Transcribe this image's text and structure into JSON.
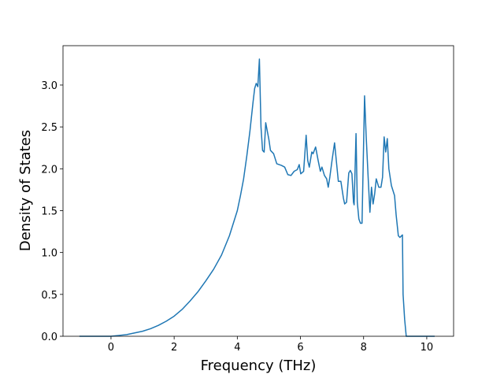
{
  "chart_data": {
    "type": "line",
    "xlabel": "Frequency (THz)",
    "ylabel": "Density of States",
    "xlim": [
      -1.52,
      10.85
    ],
    "ylim": [
      0,
      3.47
    ],
    "xticks": [
      0,
      2,
      4,
      6,
      8,
      10
    ],
    "yticks": [
      {
        "value": 0,
        "label": "0.0"
      },
      {
        "value": 0.5,
        "label": "0.5"
      },
      {
        "value": 1,
        "label": "1.0"
      },
      {
        "value": 1.5,
        "label": "1.5"
      },
      {
        "value": 2,
        "label": "2.0"
      },
      {
        "value": 2.5,
        "label": "2.5"
      },
      {
        "value": 3,
        "label": "3.0"
      }
    ],
    "series": [
      {
        "color": "#1f77b4",
        "x": [
          -1,
          -0.5,
          0,
          0.25,
          0.5,
          0.75,
          1,
          1.25,
          1.5,
          1.75,
          2,
          2.25,
          2.5,
          2.75,
          3,
          3.25,
          3.5,
          3.75,
          4,
          4.1,
          4.2,
          4.3,
          4.4,
          4.5,
          4.55,
          4.6,
          4.65,
          4.7,
          4.75,
          4.8,
          4.85,
          4.9,
          5.0,
          5.05,
          5.15,
          5.25,
          5.4,
          5.5,
          5.6,
          5.7,
          5.8,
          5.9,
          5.96,
          6.01,
          6.1,
          6.18,
          6.23,
          6.28,
          6.36,
          6.4,
          6.48,
          6.56,
          6.63,
          6.68,
          6.76,
          6.83,
          6.88,
          6.93,
          7.0,
          7.08,
          7.2,
          7.28,
          7.36,
          7.4,
          7.46,
          7.53,
          7.58,
          7.63,
          7.68,
          7.7,
          7.76,
          7.8,
          7.85,
          7.9,
          7.95,
          8.03,
          8.08,
          8.15,
          8.2,
          8.25,
          8.3,
          8.35,
          8.4,
          8.48,
          8.55,
          8.6,
          8.65,
          8.7,
          8.75,
          8.8,
          8.88,
          8.98,
          9.03,
          9.1,
          9.15,
          9.23,
          9.25,
          9.3,
          9.35,
          9.5,
          10.25
        ],
        "values": [
          0,
          0,
          0,
          0.01,
          0.02,
          0.04,
          0.06,
          0.09,
          0.13,
          0.18,
          0.24,
          0.32,
          0.42,
          0.53,
          0.66,
          0.8,
          0.97,
          1.2,
          1.5,
          1.68,
          1.88,
          2.15,
          2.45,
          2.8,
          2.96,
          3.02,
          2.98,
          3.31,
          2.5,
          2.22,
          2.2,
          2.55,
          2.35,
          2.22,
          2.18,
          2.06,
          2.04,
          2.02,
          1.93,
          1.92,
          1.97,
          1.99,
          2.05,
          1.94,
          1.97,
          2.4,
          2.1,
          2.02,
          2.2,
          2.18,
          2.26,
          2.1,
          1.97,
          2.02,
          1.92,
          1.88,
          1.78,
          1.9,
          2.1,
          2.31,
          1.85,
          1.85,
          1.65,
          1.58,
          1.6,
          1.95,
          1.98,
          1.94,
          1.6,
          1.57,
          2.42,
          1.6,
          1.4,
          1.35,
          1.35,
          2.87,
          2.4,
          1.85,
          1.48,
          1.78,
          1.58,
          1.7,
          1.88,
          1.78,
          1.78,
          1.9,
          2.38,
          2.2,
          2.36,
          2.0,
          1.8,
          1.68,
          1.45,
          1.2,
          1.18,
          1.21,
          0.5,
          0.2,
          0,
          0,
          0
        ]
      }
    ]
  }
}
